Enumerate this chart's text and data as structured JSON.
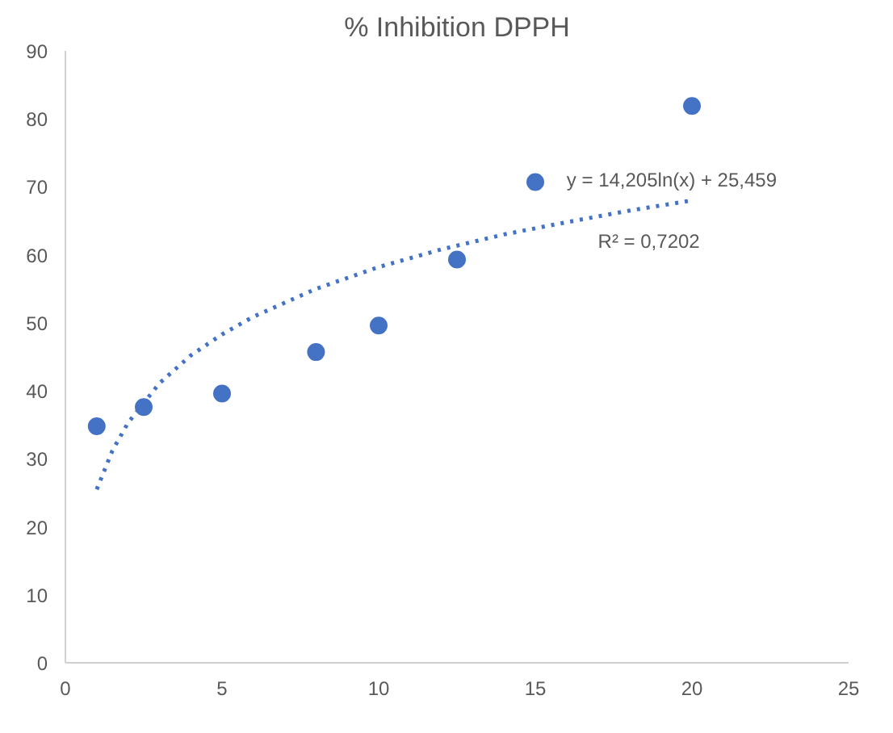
{
  "chart_data": {
    "type": "scatter",
    "title": "% Inhibition DPPH",
    "xlim": [
      0,
      25
    ],
    "xticks": [
      0,
      5,
      10,
      15,
      20,
      25
    ],
    "ylim": [
      0,
      90
    ],
    "yticks": [
      0,
      10,
      20,
      30,
      40,
      50,
      60,
      70,
      80,
      90
    ],
    "grid": false,
    "marker": "circle",
    "series": [
      {
        "color": "#4472c4",
        "x": [
          1,
          2.5,
          5,
          8,
          10,
          12.5,
          15,
          20
        ],
        "values": [
          34.8,
          37.6,
          39.6,
          45.7,
          49.6,
          59.3,
          70.7,
          81.9
        ]
      },
      {
        "type": "line",
        "line_style": "dotted",
        "marker": "none",
        "color": "#4472c4",
        "x": [
          1,
          1.5,
          2,
          3,
          4,
          5,
          6,
          8,
          10,
          12,
          14,
          16,
          18,
          20
        ],
        "values": [
          25.5,
          31.2,
          35.3,
          41.1,
          45.2,
          48.3,
          50.9,
          55.0,
          58.2,
          60.8,
          63.0,
          64.8,
          66.5,
          68.0
        ]
      }
    ],
    "annotations": [
      "y = 14,205ln(x) + 25,459",
      "R² = 0,7202"
    ]
  }
}
